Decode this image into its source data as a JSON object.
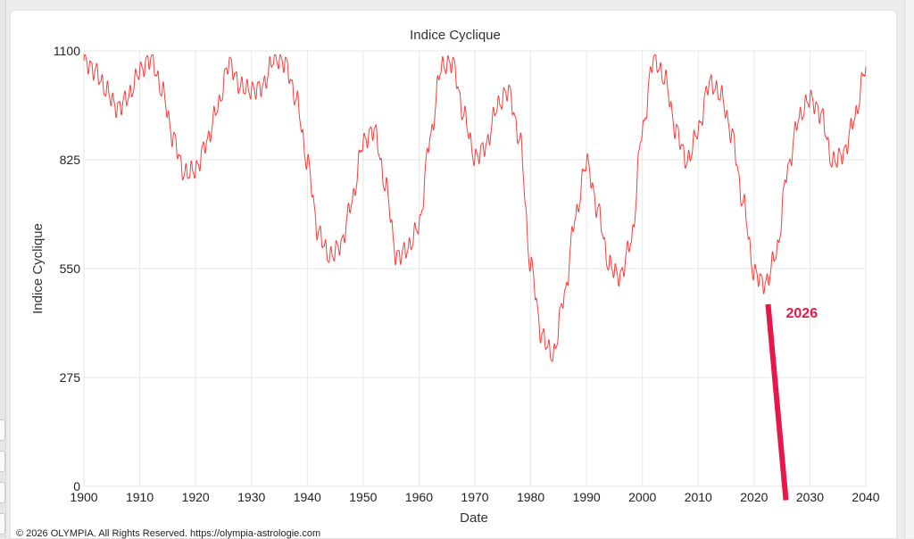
{
  "chart_data": {
    "type": "line",
    "title": "Indice Cyclique",
    "xlabel": "Date",
    "ylabel": "Indice Cyclique",
    "xlim": [
      1900,
      2040
    ],
    "ylim": [
      0,
      1100
    ],
    "x_ticks": [
      1900,
      1910,
      1920,
      1930,
      1940,
      1950,
      1960,
      1970,
      1980,
      1990,
      2000,
      2010,
      2020,
      2030,
      2040
    ],
    "y_ticks": [
      0,
      275,
      550,
      825,
      1100
    ],
    "grid": true,
    "series": [
      {
        "name": "",
        "color": "#ff3b3b",
        "x": [
          1900,
          1902,
          1904,
          1906,
          1908,
          1910,
          1912,
          1914,
          1916,
          1918,
          1920,
          1922,
          1924,
          1926,
          1928,
          1930,
          1932,
          1934,
          1936,
          1938,
          1940,
          1942,
          1944,
          1946,
          1948,
          1950,
          1952,
          1954,
          1956,
          1958,
          1960,
          1962,
          1964,
          1966,
          1968,
          1970,
          1972,
          1974,
          1976,
          1978,
          1980,
          1982,
          1984,
          1986,
          1988,
          1990,
          1992,
          1994,
          1996,
          1998,
          2000,
          2002,
          2004,
          2006,
          2008,
          2010,
          2012,
          2014,
          2016,
          2018,
          2020,
          2022,
          2024,
          2026,
          2028,
          2030,
          2032,
          2034,
          2036,
          2038,
          2040
        ],
        "y": [
          1075,
          1050,
          1000,
          955,
          985,
          1050,
          1080,
          1000,
          880,
          790,
          800,
          870,
          960,
          1070,
          1010,
          1000,
          1010,
          1080,
          1070,
          980,
          820,
          640,
          580,
          610,
          720,
          870,
          900,
          760,
          580,
          600,
          660,
          880,
          1060,
          1070,
          940,
          830,
          860,
          960,
          1000,
          880,
          560,
          380,
          330,
          480,
          680,
          820,
          700,
          560,
          530,
          620,
          900,
          1080,
          1030,
          900,
          820,
          900,
          1020,
          990,
          890,
          720,
          540,
          510,
          590,
          800,
          930,
          980,
          940,
          820,
          840,
          930,
          1060
        ]
      }
    ],
    "annotations": [
      {
        "text": "2026",
        "color": "#e8174a",
        "line_from": {
          "x": 2022.5,
          "y": 460
        },
        "line_to": {
          "x": 2025.7,
          "y": -35
        }
      }
    ]
  },
  "footer": {
    "copyright": "© 2026 OLYMPIA. All Rights Reserved. https://olympia-astrologie.com"
  }
}
